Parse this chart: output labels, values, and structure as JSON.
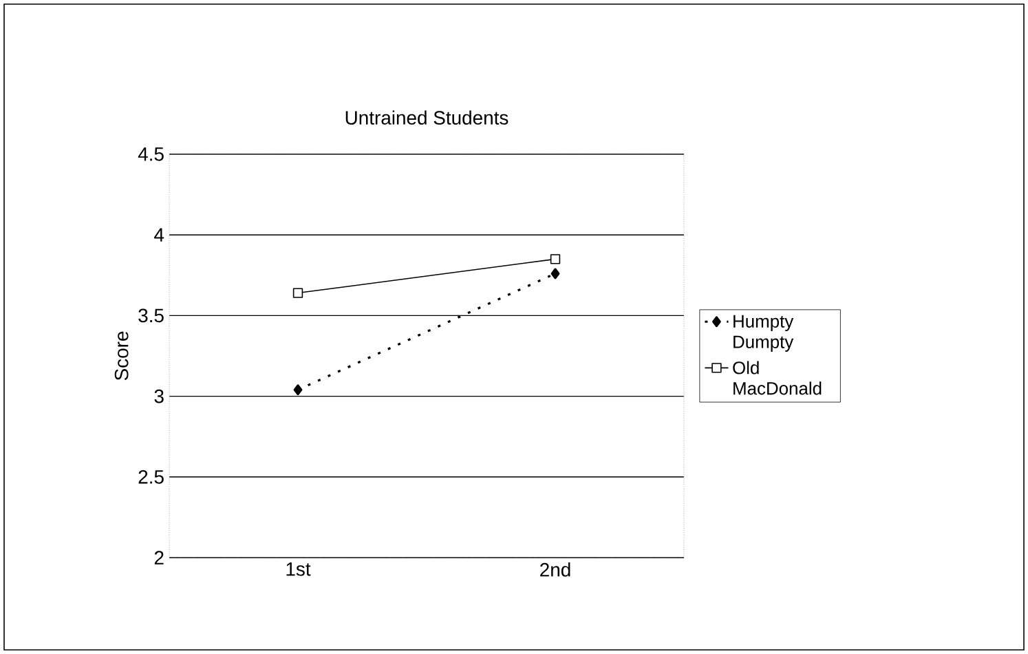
{
  "chart_data": {
    "type": "line",
    "title": "Untrained Students",
    "ylabel": "Score",
    "categories": [
      "1st",
      "2nd"
    ],
    "series": [
      {
        "name": "Humpty Dumpty",
        "color": "#000000",
        "values": [
          3.04,
          3.76
        ],
        "marker": "diamond",
        "line_style": "dotted"
      },
      {
        "name": "Old MacDonald",
        "color": "#000000",
        "values": [
          3.64,
          3.85
        ],
        "marker": "square",
        "line_style": "solid"
      }
    ],
    "ylim": [
      2,
      4.5
    ],
    "yticks": [
      2,
      2.5,
      3,
      3.5,
      4,
      4.5
    ],
    "grid": "y",
    "legend": "right"
  }
}
